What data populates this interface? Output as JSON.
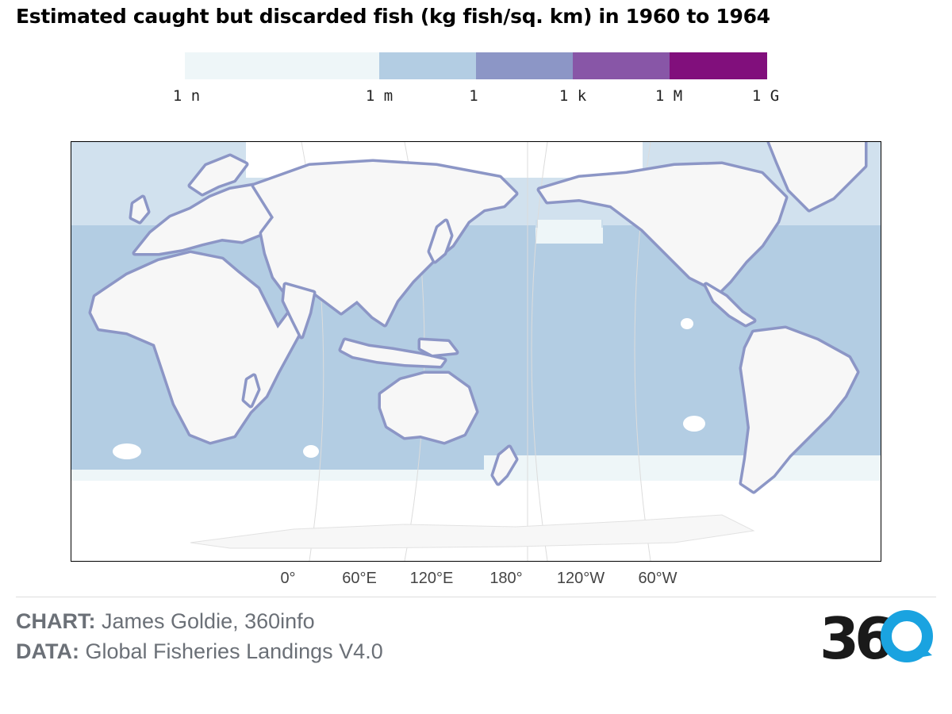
{
  "title": "Estimated caught but discarded fish (kg fish/sq. km) in 1960 to 1964",
  "legend": {
    "colors": [
      "#eef6f8",
      "#b3cde3",
      "#8c96c6",
      "#8856a7",
      "#810f7c"
    ],
    "ticks": [
      "1 n",
      "1 m",
      "1",
      "1 k",
      "1 M",
      "1 G"
    ]
  },
  "map": {
    "land_color": "#f7f7f7",
    "ocean_color": "#b3cde3",
    "coastal_color": "#8c96c6",
    "border_color": "#d4d4d4",
    "longitude_labels": [
      "0°",
      "60°E",
      "120°E",
      "180°",
      "120°W",
      "60°W"
    ]
  },
  "credits": {
    "chart_label": "CHART:",
    "chart_value": "James Goldie, 360info",
    "data_label": "DATA:",
    "data_value": "Global Fisheries Landings V4.0"
  },
  "logo": {
    "text": "360",
    "accent_color": "#1aa3e0"
  }
}
